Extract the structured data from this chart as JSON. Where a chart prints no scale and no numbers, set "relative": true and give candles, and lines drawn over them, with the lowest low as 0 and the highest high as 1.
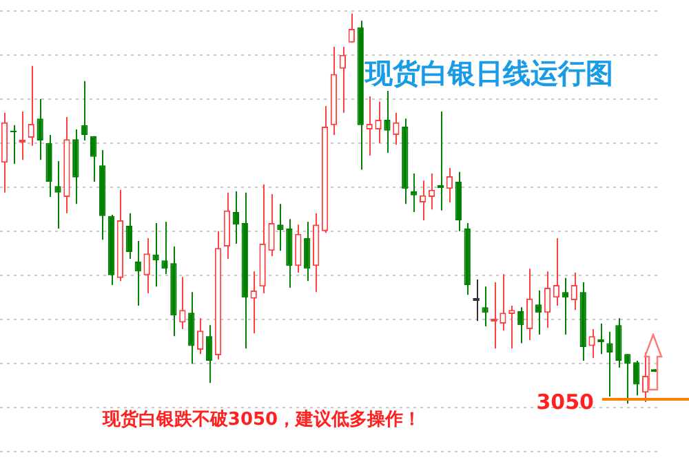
{
  "chart_data": {
    "type": "candlestick",
    "title": "现货白银日线运行图",
    "relative": true,
    "grid": true,
    "categories": [
      null,
      null,
      null,
      null,
      null,
      null,
      null,
      null,
      null,
      null,
      null,
      null,
      null,
      null,
      null,
      null,
      null,
      null,
      null,
      null,
      null,
      null,
      null,
      null,
      null,
      null,
      null,
      null,
      null,
      null,
      null,
      null,
      null,
      null,
      null,
      null,
      null,
      null,
      null,
      null,
      null,
      null,
      null,
      null,
      null,
      null,
      null,
      null,
      null,
      null,
      null,
      null,
      null,
      null,
      null,
      null,
      null,
      null,
      null,
      null,
      null,
      null,
      null,
      null,
      null,
      null,
      null,
      null,
      null,
      null,
      null,
      null,
      null,
      null
    ],
    "ohlc": [
      [
        0.618,
        0.746,
        0.541,
        0.721
      ],
      [
        0.7,
        0.714,
        0.615,
        0.696
      ],
      [
        0.675,
        0.749,
        0.625,
        0.675
      ],
      [
        0.682,
        0.866,
        0.661,
        0.717
      ],
      [
        0.731,
        0.781,
        0.625,
        0.675
      ],
      [
        0.668,
        0.689,
        0.53,
        0.569
      ],
      [
        0.558,
        0.622,
        0.449,
        0.541
      ],
      [
        0.53,
        0.735,
        0.488,
        0.678
      ],
      [
        0.678,
        0.703,
        0.512,
        0.58
      ],
      [
        0.714,
        0.827,
        0.675,
        0.689
      ],
      [
        0.686,
        0.686,
        0.569,
        0.633
      ],
      [
        0.611,
        0.65,
        0.42,
        0.481
      ],
      [
        0.481,
        0.484,
        0.304,
        0.329
      ],
      [
        0.322,
        0.548,
        0.314,
        0.47
      ],
      [
        0.456,
        0.488,
        0.371,
        0.389
      ],
      [
        0.364,
        0.417,
        0.251,
        0.339
      ],
      [
        0.329,
        0.424,
        0.283,
        0.385
      ],
      [
        0.382,
        0.463,
        0.3,
        0.367
      ],
      [
        0.367,
        0.466,
        0.332,
        0.346
      ],
      [
        0.36,
        0.403,
        0.173,
        0.226
      ],
      [
        0.208,
        0.325,
        0.191,
        0.24
      ],
      [
        0.233,
        0.286,
        0.102,
        0.148
      ],
      [
        0.138,
        0.219,
        0.127,
        0.187
      ],
      [
        0.173,
        0.201,
        0.053,
        0.11
      ],
      [
        0.124,
        0.442,
        0.113,
        0.399
      ],
      [
        0.403,
        0.541,
        0.371,
        0.495
      ],
      [
        0.491,
        0.544,
        0.41,
        0.459
      ],
      [
        0.463,
        0.541,
        0.141,
        0.272
      ],
      [
        0.269,
        0.339,
        0.18,
        0.29
      ],
      [
        0.3,
        0.562,
        0.283,
        0.41
      ],
      [
        0.392,
        0.537,
        0.378,
        0.463
      ],
      [
        0.459,
        0.512,
        0.392,
        0.445
      ],
      [
        0.449,
        0.473,
        0.297,
        0.353
      ],
      [
        0.353,
        0.459,
        0.336,
        0.435
      ],
      [
        0.424,
        0.466,
        0.314,
        0.346
      ],
      [
        0.353,
        0.488,
        0.286,
        0.459
      ],
      [
        0.442,
        0.763,
        0.438,
        0.71
      ],
      [
        0.714,
        0.915,
        0.689,
        0.845
      ],
      [
        0.859,
        0.915,
        0.746,
        0.894
      ],
      [
        0.926,
        1,
        0.926,
        0.961
      ],
      [
        0.965,
        0.982,
        0.6,
        0.714
      ],
      [
        0.703,
        0.788,
        0.636,
        0.717
      ],
      [
        0.703,
        0.774,
        0.668,
        0.728
      ],
      [
        0.728,
        0.802,
        0.643,
        0.7
      ],
      [
        0.689,
        0.746,
        0.664,
        0.721
      ],
      [
        0.71,
        0.731,
        0.512,
        0.551
      ],
      [
        0.544,
        0.59,
        0.491,
        0.534
      ],
      [
        0.516,
        0.572,
        0.47,
        0.534
      ],
      [
        0.53,
        0.59,
        0.498,
        0.548
      ],
      [
        0.558,
        0.749,
        0.495,
        0.558
      ],
      [
        0.551,
        0.604,
        0.516,
        0.583
      ],
      [
        0.569,
        0.594,
        0.442,
        0.47
      ],
      [
        0.449,
        0.463,
        0.279,
        0.304
      ],
      [
        0.269,
        0.318,
        0.212,
        0.269
      ],
      [
        0.247,
        0.3,
        0.198,
        0.233
      ],
      [
        0.216,
        0.311,
        0.141,
        0.216
      ],
      [
        0.205,
        0.332,
        0.187,
        0.233
      ],
      [
        0.23,
        0.251,
        0.141,
        0.24
      ],
      [
        0.237,
        0.247,
        0.155,
        0.201
      ],
      [
        0.191,
        0.346,
        0.163,
        0.269
      ],
      [
        0.254,
        0.29,
        0.177,
        0.233
      ],
      [
        0.233,
        0.339,
        0.194,
        0.297
      ],
      [
        0.272,
        0.424,
        0.251,
        0.304
      ],
      [
        0.286,
        0.322,
        0.177,
        0.272
      ],
      [
        0.265,
        0.336,
        0.24,
        0.304
      ],
      [
        0.286,
        0.311,
        0.11,
        0.145
      ],
      [
        0.148,
        0.191,
        0.117,
        0.173
      ],
      [
        0.163,
        0.205,
        0.127,
        0.163
      ],
      [
        0.155,
        0.184,
        0.018,
        0.131
      ],
      [
        0.201,
        0.219,
        0.092,
        0.11
      ],
      [
        0.127,
        0.127,
        0,
        0.102
      ],
      [
        0.106,
        0.11,
        0.021,
        0.049
      ],
      [
        0.028,
        0.131,
        0.004,
        0.071
      ],
      [
        0.088,
        0.088,
        0.081,
        0.081
      ]
    ],
    "colors": [
      "#ff4040",
      "#008000",
      "#ff4040",
      "#ff4040",
      "#008000",
      "#008000",
      "#008000",
      "#ff4040",
      "#008000",
      "#008000",
      "#008000",
      "#008000",
      "#008000",
      "#ff4040",
      "#008000",
      "#008000",
      "#ff4040",
      "#008000",
      "#008000",
      "#008000",
      "#ff4040",
      "#008000",
      "#ff4040",
      "#008000",
      "#ff4040",
      "#ff4040",
      "#008000",
      "#008000",
      "#ff4040",
      "#ff4040",
      "#ff4040",
      "#008000",
      "#008000",
      "#ff4040",
      "#008000",
      "#ff4040",
      "#ff4040",
      "#ff4040",
      "#ff4040",
      "#ff4040",
      "#008000",
      "#ff4040",
      "#ff4040",
      "#008000",
      "#ff4040",
      "#008000",
      "#008000",
      "#ff4040",
      "#ff4040",
      "#008000",
      "#ff4040",
      "#008000",
      "#008000",
      "#333333",
      "#008000",
      "#ff4040",
      "#ff4040",
      "#ff4040",
      "#008000",
      "#ff4040",
      "#008000",
      "#ff4040",
      "#ff4040",
      "#008000",
      "#ff4040",
      "#008000",
      "#ff4040",
      "#008000",
      "#008000",
      "#008000",
      "#008000",
      "#008000",
      "#ff4040",
      "#008000"
    ],
    "ref_lines": [
      {
        "axis": "y",
        "value": 0.011,
        "color": "#ff8000"
      }
    ],
    "annotations": [
      "现货白银跌不破3050，建议低多操作！",
      "3050"
    ]
  }
}
